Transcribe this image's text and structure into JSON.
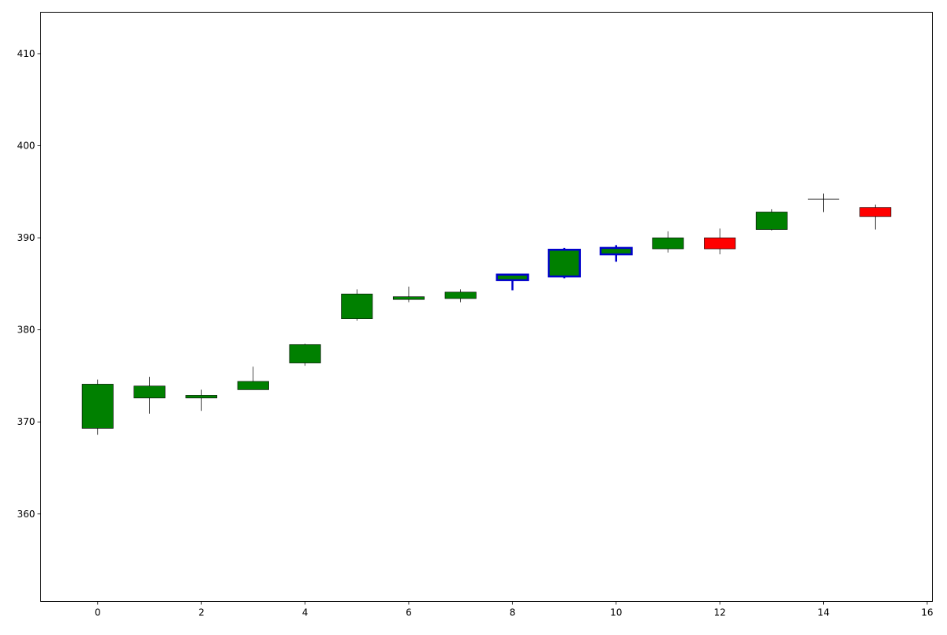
{
  "chart_data": {
    "type": "candlestick",
    "title": "",
    "xlabel": "",
    "ylabel": "",
    "xlim": [
      -1.1,
      16.1
    ],
    "ylim": [
      350.5,
      414.5
    ],
    "x_ticks": [
      0,
      2,
      4,
      6,
      8,
      10,
      12,
      14,
      16
    ],
    "y_ticks": [
      360,
      370,
      380,
      390,
      400,
      410
    ],
    "grid": false,
    "legend": "none",
    "colors": {
      "up": "#008000",
      "down": "#ff0000",
      "highlight_edge": "#0000cc",
      "edge": "#000000"
    },
    "candles": [
      {
        "x": 0,
        "open": 369.3,
        "high": 374.6,
        "low": 368.6,
        "close": 374.1,
        "highlight": false
      },
      {
        "x": 1,
        "open": 372.6,
        "high": 374.9,
        "low": 370.9,
        "close": 373.9,
        "highlight": false
      },
      {
        "x": 2,
        "open": 372.6,
        "high": 373.5,
        "low": 371.2,
        "close": 372.9,
        "highlight": false
      },
      {
        "x": 3,
        "open": 373.5,
        "high": 376.0,
        "low": 373.5,
        "close": 374.4,
        "highlight": false
      },
      {
        "x": 4,
        "open": 376.4,
        "high": 378.5,
        "low": 376.1,
        "close": 378.4,
        "highlight": false
      },
      {
        "x": 5,
        "open": 381.2,
        "high": 384.4,
        "low": 381.0,
        "close": 383.9,
        "highlight": false
      },
      {
        "x": 6,
        "open": 383.3,
        "high": 384.7,
        "low": 383.0,
        "close": 383.6,
        "highlight": false
      },
      {
        "x": 7,
        "open": 383.4,
        "high": 384.4,
        "low": 383.0,
        "close": 384.1,
        "highlight": false
      },
      {
        "x": 8,
        "open": 385.4,
        "high": 386.0,
        "low": 384.3,
        "close": 386.0,
        "highlight": true
      },
      {
        "x": 9,
        "open": 385.8,
        "high": 388.9,
        "low": 385.6,
        "close": 388.7,
        "highlight": true
      },
      {
        "x": 10,
        "open": 388.2,
        "high": 389.2,
        "low": 387.4,
        "close": 388.9,
        "highlight": true
      },
      {
        "x": 11,
        "open": 388.8,
        "high": 390.7,
        "low": 388.4,
        "close": 390.0,
        "highlight": false
      },
      {
        "x": 12,
        "open": 390.0,
        "high": 391.0,
        "low": 388.2,
        "close": 388.8,
        "highlight": false
      },
      {
        "x": 13,
        "open": 390.9,
        "high": 393.1,
        "low": 390.8,
        "close": 392.8,
        "highlight": false
      },
      {
        "x": 14,
        "open": 394.2,
        "high": 394.8,
        "low": 392.8,
        "close": 394.2,
        "highlight": false
      },
      {
        "x": 15,
        "open": 393.3,
        "high": 393.6,
        "low": 390.9,
        "close": 392.3,
        "highlight": false
      }
    ]
  }
}
